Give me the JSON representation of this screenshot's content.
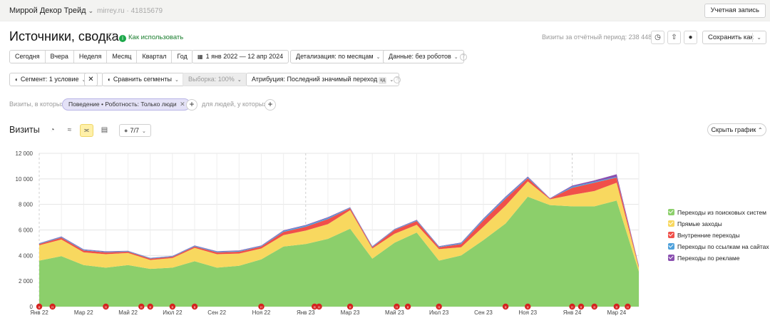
{
  "topbar": {
    "brand": "Миррой Декор Трейд",
    "site": "mirrey.ru · 41815679",
    "account": "Учетная запись"
  },
  "header": {
    "title": "Источники, сводка",
    "howto": "Как использовать",
    "visits_period": "Визиты за отчётный период: 238 448",
    "save": "Сохранить как"
  },
  "periods": [
    "Сегодня",
    "Вчера",
    "Неделя",
    "Месяц",
    "Квартал",
    "Год"
  ],
  "controls": {
    "date_range": "1 янв 2022 — 12 апр 2024",
    "detail": "Детализация: по месяцам",
    "data": "Данные: без роботов",
    "segment": "Сегмент: 1 условие",
    "compare": "Сравнить сегменты",
    "sample": "Выборка: 100%",
    "attribution": "Атрибуция: Последний значимый переход",
    "attribution_badge": "кд"
  },
  "filters": {
    "prefix": "Визиты, в которых",
    "chip": "Поведение • Роботность: Только люди",
    "suffix": "для людей, у которых"
  },
  "toolbar": {
    "label": "Визиты",
    "counter": "7/7",
    "hide_chart": "Скрыть график"
  },
  "colors": {
    "search": "#8ccf6b",
    "direct": "#f8d85f",
    "internal": "#f0504a",
    "links": "#4fa1db",
    "ads": "#8a4fb0",
    "annotation": "#d5231f"
  },
  "chart_data": {
    "type": "area",
    "stacked": true,
    "ylim": [
      0,
      12000
    ],
    "yticks": [
      "0",
      "2 000",
      "4 000",
      "6 000",
      "8 000",
      "10 000",
      "12 000"
    ],
    "xlabels": [
      "Янв 22",
      "Мар 22",
      "Май 22",
      "Июл 22",
      "Сен 22",
      "Ноя 22",
      "Янв 23",
      "Мар 23",
      "Май 23",
      "Июл 23",
      "Сен 23",
      "Ноя 23",
      "Янв 24",
      "Мар 24"
    ],
    "series": [
      {
        "name": "Переходы из поисковых систем",
        "color": "#8ccf6b",
        "values": [
          3600,
          3950,
          3250,
          3050,
          3250,
          2950,
          3050,
          3550,
          3050,
          3200,
          3700,
          4700,
          4900,
          5300,
          6100,
          3750,
          5000,
          5800,
          3600,
          4000,
          5200,
          6500,
          8600,
          7950,
          7850,
          7850,
          8300,
          2750
        ]
      },
      {
        "name": "Прямые заходы",
        "color": "#f8d85f",
        "values": [
          1200,
          1300,
          1000,
          1050,
          950,
          700,
          750,
          1050,
          1050,
          950,
          850,
          900,
          1050,
          1150,
          1450,
          800,
          700,
          600,
          900,
          650,
          1050,
          1400,
          1200,
          450,
          900,
          1200,
          1400,
          300
        ]
      },
      {
        "name": "Внутренние переходы",
        "color": "#f0504a",
        "values": [
          100,
          150,
          150,
          150,
          100,
          100,
          100,
          100,
          150,
          150,
          150,
          250,
          300,
          400,
          150,
          100,
          300,
          300,
          150,
          250,
          500,
          550,
          250,
          50,
          550,
          650,
          400,
          100
        ]
      },
      {
        "name": "Переходы по ссылкам на сайтах",
        "color": "#4fa1db",
        "values": [
          50,
          60,
          60,
          50,
          50,
          50,
          50,
          60,
          60,
          60,
          60,
          80,
          100,
          100,
          50,
          50,
          50,
          60,
          50,
          80,
          100,
          100,
          80,
          20,
          100,
          80,
          60,
          40
        ]
      },
      {
        "name": "Переходы по рекламе",
        "color": "#8a4fb0",
        "values": [
          20,
          30,
          30,
          30,
          20,
          20,
          20,
          30,
          30,
          30,
          30,
          40,
          40,
          50,
          30,
          30,
          30,
          40,
          30,
          40,
          50,
          60,
          50,
          20,
          80,
          100,
          200,
          40
        ]
      }
    ],
    "annotations_x": [
      0,
      0.6,
      3,
      4.6,
      5,
      6,
      7,
      10,
      12.4,
      12.6,
      14,
      16.1,
      16.6,
      18,
      21,
      22,
      24,
      24.4,
      25,
      26,
      26.5
    ]
  }
}
